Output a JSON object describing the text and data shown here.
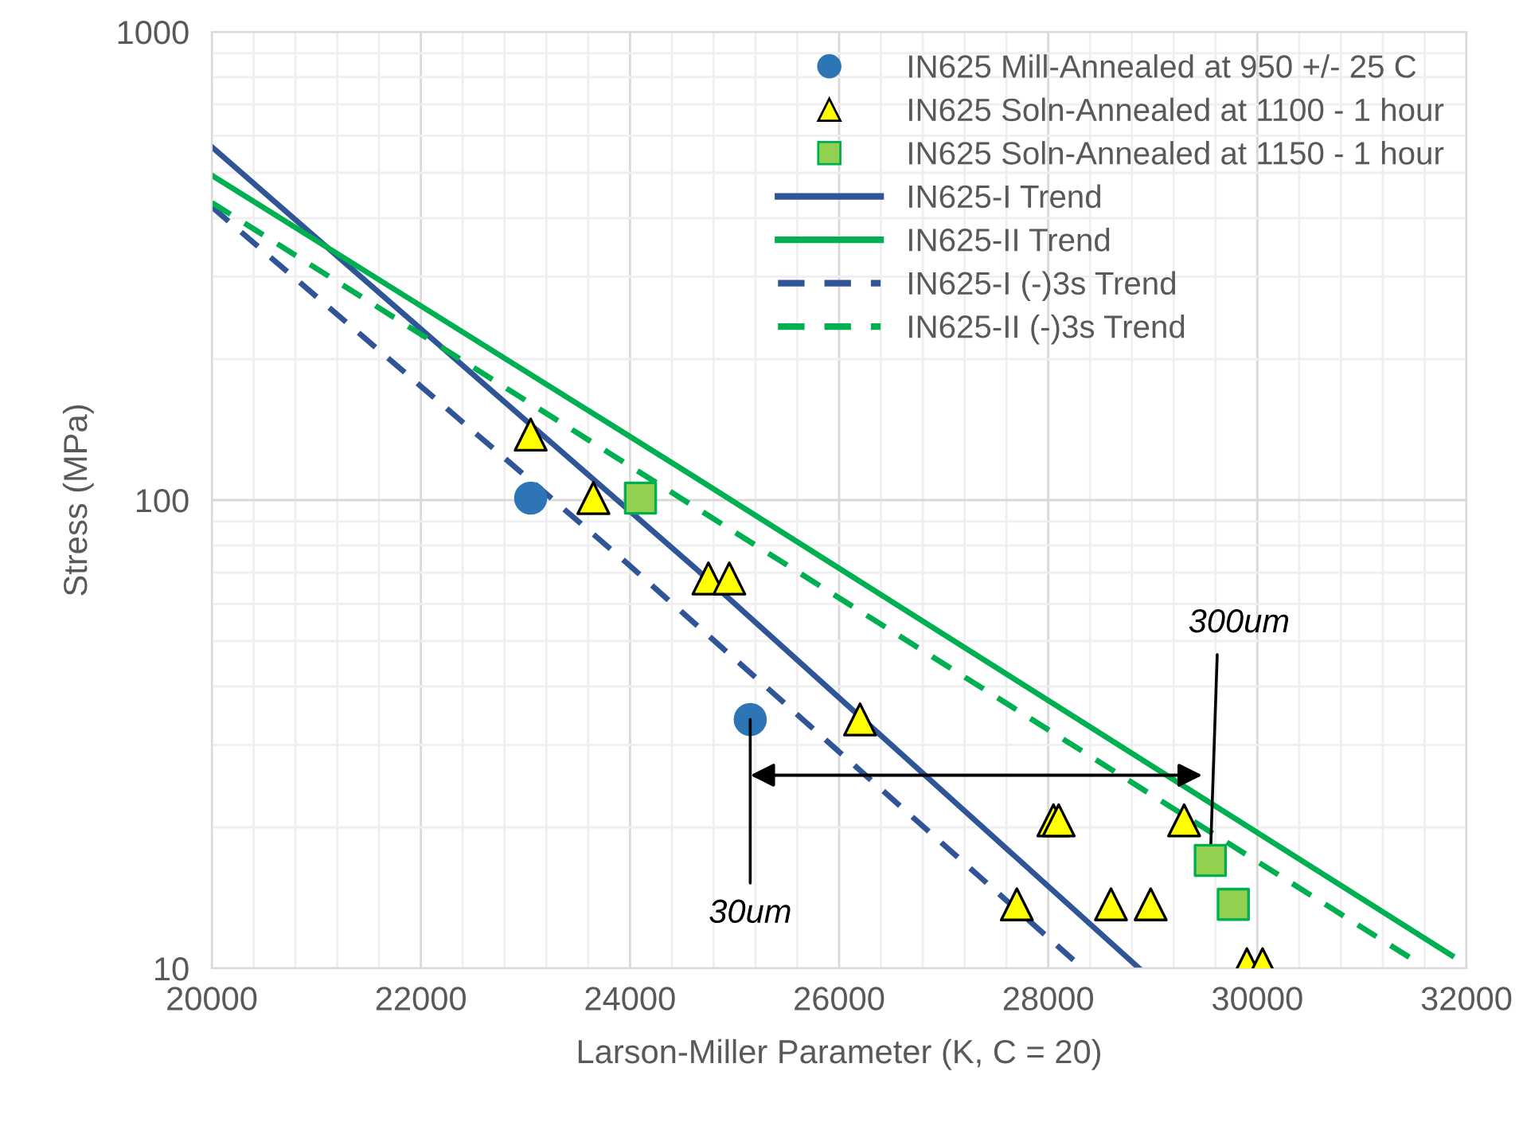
{
  "chart_data": {
    "type": "scatter",
    "xlabel": "Larson-Miller Parameter (K, C = 20)",
    "ylabel": "Stress (MPa)",
    "log": "y",
    "xlim": [
      20000,
      32000
    ],
    "xticks": [
      20000,
      22000,
      24000,
      26000,
      28000,
      30000,
      32000
    ],
    "ylim": [
      10,
      1000
    ],
    "yticks": [
      10,
      100,
      1000
    ],
    "grid": true,
    "legend": "top right",
    "series": [
      {
        "name": "IN625 Mill-Annealed at 950 +/- 25 C",
        "marker": "circle",
        "color": "#2e75b6",
        "x": [
          23050,
          25150
        ],
        "values": [
          101,
          34
        ]
      },
      {
        "name": "IN625 Soln-Annealed at 1100 - 1 hour",
        "marker": "triangle",
        "color": "#ffff00",
        "x": [
          23050,
          23650,
          24750,
          24950,
          26200,
          28050,
          28100,
          27700,
          28600,
          28980,
          29300,
          29900,
          30050
        ],
        "values": [
          138,
          101,
          68,
          68,
          34,
          20.7,
          20.7,
          13.7,
          13.7,
          13.7,
          20.7,
          10.2,
          10.2
        ]
      },
      {
        "name": "IN625 Soln-Annealed at 1150 - 1 hour",
        "marker": "square",
        "color": "#92d050",
        "x": [
          24100,
          29550,
          29770
        ],
        "values": [
          101,
          17,
          13.7
        ]
      },
      {
        "name": "IN625-I Trend",
        "type": "line",
        "line_style": "solid",
        "color": "#2f5597",
        "x": [
          20000,
          24630,
          28870
        ],
        "values": [
          568,
          71.4,
          10
        ]
      },
      {
        "name": "IN625-II Trend",
        "type": "line",
        "line_style": "solid",
        "color": "#00b050",
        "x": [
          20000,
          24630,
          31860
        ],
        "values": [
          494,
          111.6,
          10.65
        ]
      },
      {
        "name": "IN625-I (-)3s Trend",
        "type": "line",
        "line_style": "dashed",
        "color": "#2f5597",
        "x": [
          20000,
          23960,
          28330
        ],
        "values": [
          423,
          73.7,
          10
        ]
      },
      {
        "name": "IN625-II (-)3s Trend",
        "type": "line",
        "line_style": "dashed",
        "color": "#00b050",
        "x": [
          20000,
          31500
        ],
        "values": [
          432,
          10.4
        ]
      }
    ],
    "annotations": [
      {
        "text": "30um",
        "x": 25150,
        "y": 34
      },
      {
        "text": "300um",
        "x": 29550,
        "y": 17
      }
    ]
  }
}
